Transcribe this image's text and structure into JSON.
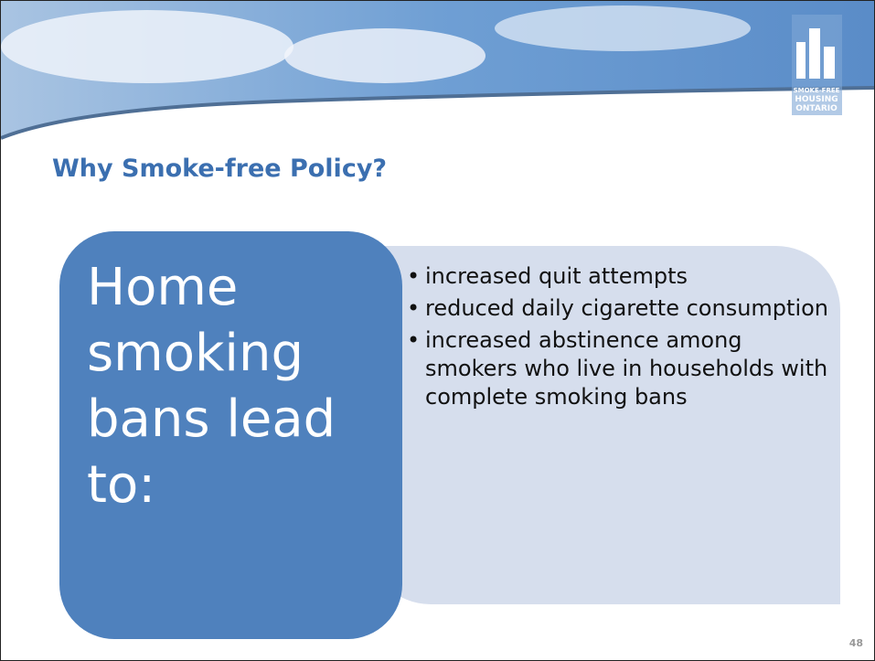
{
  "header": {
    "logo": [
      "SMOKE-FREE",
      "HOUSING",
      "ONTARIO"
    ]
  },
  "title": "Why Smoke-free Policy?",
  "lead": "Home smoking bans lead to:",
  "points": [
    "increased quit attempts",
    "reduced daily cigarette consumption",
    "increased abstinence among smokers who live in households with complete smoking bans"
  ],
  "page_number": "48"
}
